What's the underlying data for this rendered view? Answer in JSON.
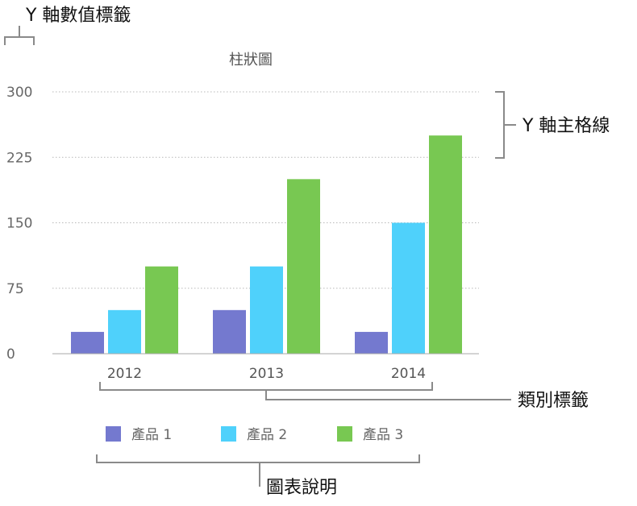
{
  "annotations": {
    "y_axis_value_labels": "Y 軸數值標籤",
    "y_axis_major_gridlines": "Y 軸主格線",
    "category_labels": "類別標籤",
    "legend": "圖表說明"
  },
  "chart_data": {
    "type": "bar",
    "title": "柱狀圖",
    "xlabel": "",
    "ylabel": "",
    "categories": [
      "2012",
      "2013",
      "2014"
    ],
    "series": [
      {
        "name": "產品 1",
        "color": "#7479cf",
        "values": [
          25,
          50,
          25
        ]
      },
      {
        "name": "產品 2",
        "color": "#4fd1fb",
        "values": [
          50,
          100,
          150
        ]
      },
      {
        "name": "產品 3",
        "color": "#78c852",
        "values": [
          100,
          200,
          250
        ]
      }
    ],
    "ylim": [
      0,
      300
    ],
    "yticks": [
      "0",
      "75",
      "150",
      "225",
      "300"
    ],
    "grid": true,
    "legend_position": "bottom"
  }
}
